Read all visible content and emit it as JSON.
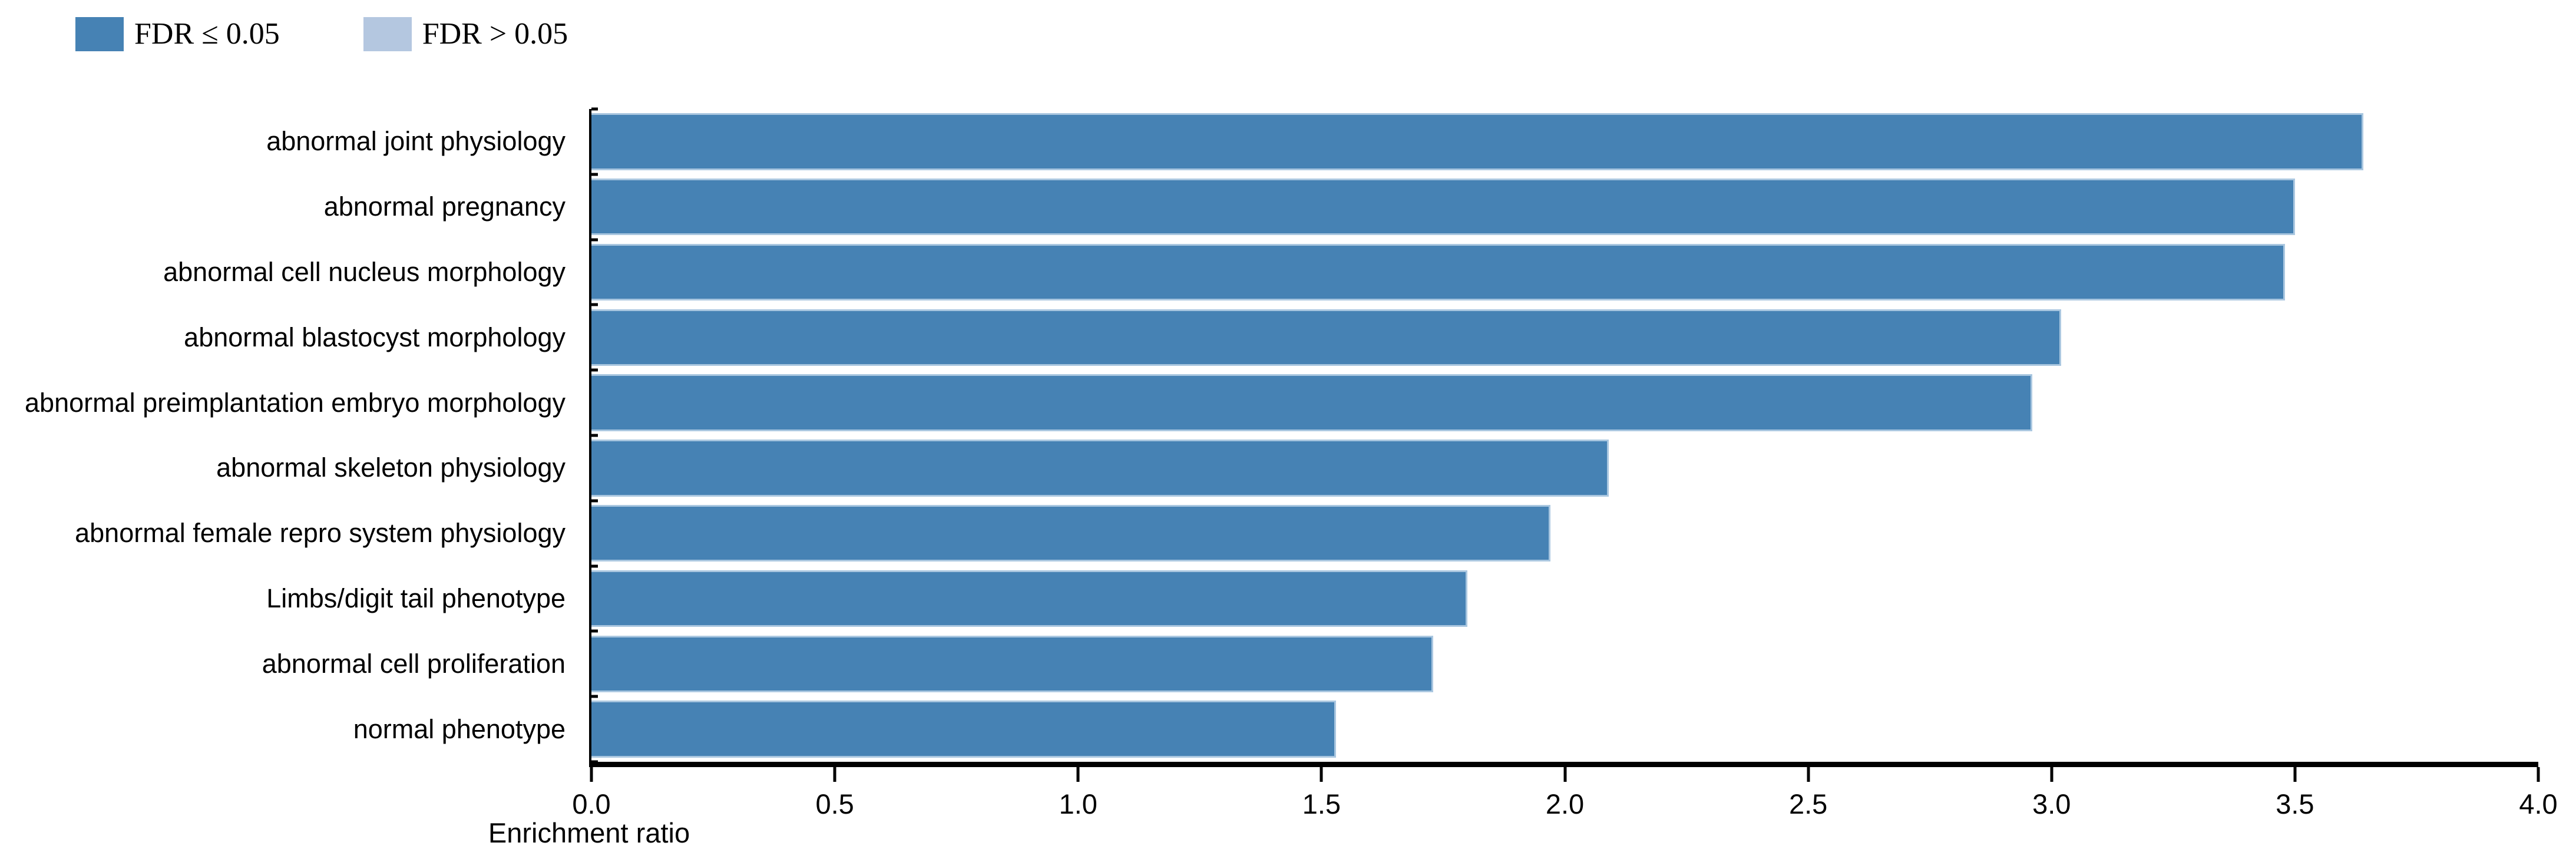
{
  "legend": {
    "items": [
      {
        "label": "FDR ≤ 0.05",
        "color": "#4682B4"
      },
      {
        "label": "FDR > 0.05",
        "color": "#B4C7E0"
      }
    ]
  },
  "colors": {
    "bar_significant": "#4682B4",
    "bar_not_significant": "#B4C7E0",
    "bar_edge": "#AAC7E0",
    "axis": "#000000"
  },
  "chart_data": {
    "type": "bar",
    "orientation": "horizontal",
    "title": "",
    "xlabel": "Enrichment ratio",
    "ylabel": "",
    "xlim": [
      0.0,
      4.0
    ],
    "grid": false,
    "legend_position": "top-left",
    "x_tick_labels": [
      "0.0",
      "0.5",
      "1.0",
      "1.5",
      "2.0",
      "2.5",
      "3.0",
      "3.5",
      "4.0"
    ],
    "categories": [
      "abnormal joint physiology",
      "abnormal pregnancy",
      "abnormal cell nucleus morphology",
      "abnormal blastocyst morphology",
      "abnormal preimplantation embryo morphology",
      "abnormal skeleton physiology",
      "abnormal female repro system physiology",
      "Limbs/digit tail phenotype",
      "abnormal cell proliferation",
      "normal phenotype"
    ],
    "values": [
      3.64,
      3.5,
      3.48,
      3.02,
      2.96,
      2.09,
      1.97,
      1.8,
      1.73,
      1.53
    ],
    "series": [
      {
        "name": "FDR ≤ 0.05",
        "applies_to": "all bars"
      }
    ]
  }
}
